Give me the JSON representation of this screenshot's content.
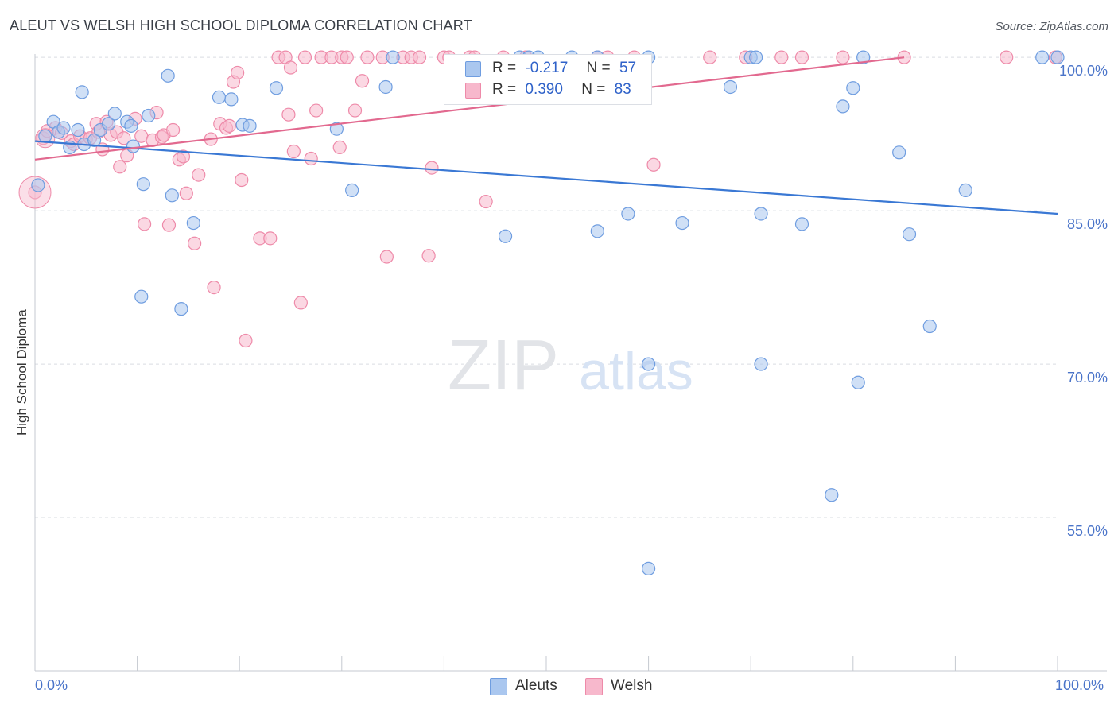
{
  "header": {
    "title": "ALEUT VS WELSH HIGH SCHOOL DIPLOMA CORRELATION CHART",
    "source": "Source: ZipAtlas.com"
  },
  "watermark": {
    "zip": "ZIP",
    "atlas": "atlas"
  },
  "legend_top": {
    "rows": [
      {
        "r_label": "R =",
        "r_value": "-0.217",
        "n_label": "N =",
        "n_value": "57",
        "color": "#aac7ef"
      },
      {
        "r_label": "R =",
        "r_value": "0.390",
        "n_label": "N =",
        "n_value": "83",
        "color": "#f7b8cc"
      }
    ]
  },
  "legend_bottom": {
    "items": [
      {
        "label": "Aleuts",
        "color": "#aac7ef"
      },
      {
        "label": "Welsh",
        "color": "#f7b8cc"
      }
    ]
  },
  "colors": {
    "aleut_fill": "#aac7ef",
    "aleut_stroke": "#6f9de0",
    "aleut_line": "#3a78d4",
    "welsh_fill": "#f7b8cc",
    "welsh_stroke": "#ee8aa9",
    "welsh_line": "#e2698f",
    "tick_text": "#4a74c9",
    "grid": "#d9dce2"
  },
  "chart_data": {
    "type": "scatter",
    "title": "ALEUT VS WELSH HIGH SCHOOL DIPLOMA CORRELATION CHART",
    "xlabel": "",
    "ylabel": "High School Diploma",
    "xlim": [
      0,
      100
    ],
    "ylim": [
      40,
      102.5
    ],
    "x_tick_labels": [
      "0.0%",
      "100.0%"
    ],
    "y_ticks": [
      55,
      70,
      85,
      100
    ],
    "y_tick_labels": [
      "55.0%",
      "70.0%",
      "85.0%",
      "100.0%"
    ],
    "grid": true,
    "legend": "bottom-center",
    "series": [
      {
        "name": "Aleuts",
        "r": -0.217,
        "n": 57,
        "trend": {
          "x": [
            0,
            100
          ],
          "y": [
            91.8,
            84.7
          ]
        },
        "points": [
          [
            0.3,
            87.5
          ],
          [
            1.0,
            92.3
          ],
          [
            1.8,
            93.7
          ],
          [
            2.3,
            92.7
          ],
          [
            2.8,
            93.1
          ],
          [
            3.4,
            91.2
          ],
          [
            4.2,
            92.9
          ],
          [
            4.6,
            96.6
          ],
          [
            4.8,
            91.5
          ],
          [
            5.8,
            91.9
          ],
          [
            6.4,
            92.9
          ],
          [
            7.2,
            93.5
          ],
          [
            7.8,
            94.5
          ],
          [
            9.0,
            93.7
          ],
          [
            9.4,
            93.3
          ],
          [
            9.6,
            91.3
          ],
          [
            10.6,
            87.6
          ],
          [
            10.4,
            76.6
          ],
          [
            11.1,
            94.3
          ],
          [
            13.0,
            98.2
          ],
          [
            13.4,
            86.5
          ],
          [
            14.3,
            75.4
          ],
          [
            15.5,
            83.8
          ],
          [
            18.0,
            96.1
          ],
          [
            19.2,
            95.9
          ],
          [
            20.3,
            93.4
          ],
          [
            21.0,
            93.3
          ],
          [
            23.6,
            97.0
          ],
          [
            29.5,
            93.0
          ],
          [
            31.0,
            87.0
          ],
          [
            35.0,
            100
          ],
          [
            34.3,
            97.1
          ],
          [
            47.4,
            100
          ],
          [
            48.3,
            100
          ],
          [
            49.2,
            100
          ],
          [
            52.5,
            100
          ],
          [
            55.0,
            100
          ],
          [
            60.0,
            100
          ],
          [
            46.0,
            82.5
          ],
          [
            55.0,
            83.0
          ],
          [
            58.0,
            84.7
          ],
          [
            60.0,
            70.0
          ],
          [
            60.0,
            50.0
          ],
          [
            63.3,
            83.8
          ],
          [
            68.0,
            97.1
          ],
          [
            70.0,
            100
          ],
          [
            70.5,
            100
          ],
          [
            71.0,
            84.7
          ],
          [
            71.0,
            70.0
          ],
          [
            75.0,
            83.7
          ],
          [
            77.9,
            57.2
          ],
          [
            79.0,
            95.2
          ],
          [
            80.0,
            97.0
          ],
          [
            80.5,
            68.2
          ],
          [
            81.0,
            100
          ],
          [
            84.5,
            90.7
          ],
          [
            85.5,
            82.7
          ],
          [
            87.5,
            73.7
          ],
          [
            91.0,
            87.0
          ],
          [
            98.5,
            100
          ],
          [
            100.0,
            100
          ]
        ]
      },
      {
        "name": "Welsh",
        "r": 0.39,
        "n": 83,
        "trend": {
          "x": [
            0,
            85
          ],
          "y": [
            90.0,
            100.0
          ]
        },
        "points": [
          [
            0.0,
            86.8
          ],
          [
            0.8,
            92.1
          ],
          [
            1.2,
            92.8
          ],
          [
            2.0,
            93.1
          ],
          [
            2.6,
            92.6
          ],
          [
            3.5,
            91.8
          ],
          [
            3.8,
            91.5
          ],
          [
            4.4,
            92.3
          ],
          [
            5.0,
            92.0
          ],
          [
            5.4,
            92.1
          ],
          [
            6.0,
            93.5
          ],
          [
            6.2,
            92.7
          ],
          [
            6.6,
            91.0
          ],
          [
            7.0,
            93.7
          ],
          [
            7.4,
            92.4
          ],
          [
            8.0,
            92.7
          ],
          [
            8.3,
            89.3
          ],
          [
            8.7,
            92.1
          ],
          [
            9.0,
            90.4
          ],
          [
            9.8,
            94.0
          ],
          [
            10.4,
            92.3
          ],
          [
            10.7,
            83.7
          ],
          [
            11.5,
            91.9
          ],
          [
            11.9,
            94.6
          ],
          [
            12.4,
            92.2
          ],
          [
            12.6,
            92.4
          ],
          [
            13.1,
            83.6
          ],
          [
            13.5,
            92.9
          ],
          [
            14.1,
            90.0
          ],
          [
            14.5,
            90.3
          ],
          [
            14.8,
            86.7
          ],
          [
            15.6,
            81.8
          ],
          [
            16.0,
            88.5
          ],
          [
            17.2,
            92.0
          ],
          [
            17.5,
            77.5
          ],
          [
            18.1,
            93.5
          ],
          [
            18.7,
            93.1
          ],
          [
            19.0,
            93.3
          ],
          [
            19.4,
            97.6
          ],
          [
            19.8,
            98.5
          ],
          [
            20.2,
            88.0
          ],
          [
            20.6,
            72.3
          ],
          [
            22.0,
            82.3
          ],
          [
            23.0,
            82.3
          ],
          [
            23.8,
            100
          ],
          [
            24.5,
            100
          ],
          [
            24.8,
            94.4
          ],
          [
            25.0,
            99.0
          ],
          [
            25.3,
            90.8
          ],
          [
            26.0,
            76.0
          ],
          [
            26.4,
            100
          ],
          [
            27.0,
            90.1
          ],
          [
            27.5,
            94.8
          ],
          [
            28.0,
            100
          ],
          [
            29.0,
            100
          ],
          [
            29.8,
            91.2
          ],
          [
            30.0,
            100
          ],
          [
            30.5,
            100
          ],
          [
            31.3,
            94.8
          ],
          [
            32.0,
            97.7
          ],
          [
            32.5,
            100
          ],
          [
            34.0,
            100
          ],
          [
            34.4,
            80.5
          ],
          [
            36.0,
            100
          ],
          [
            36.8,
            100
          ],
          [
            37.6,
            100
          ],
          [
            38.5,
            80.6
          ],
          [
            38.8,
            89.2
          ],
          [
            40.0,
            100
          ],
          [
            40.5,
            100
          ],
          [
            42.5,
            100
          ],
          [
            43.0,
            100
          ],
          [
            44.1,
            85.9
          ],
          [
            45.8,
            100
          ],
          [
            48.0,
            100
          ],
          [
            55.0,
            100
          ],
          [
            56.0,
            100
          ],
          [
            58.6,
            100
          ],
          [
            60.5,
            89.5
          ],
          [
            66.0,
            100
          ],
          [
            69.5,
            100
          ],
          [
            73.0,
            100
          ],
          [
            75.0,
            100
          ],
          [
            79.0,
            100
          ],
          [
            85.0,
            100
          ],
          [
            95.0,
            100
          ],
          [
            99.8,
            100
          ]
        ]
      }
    ]
  }
}
